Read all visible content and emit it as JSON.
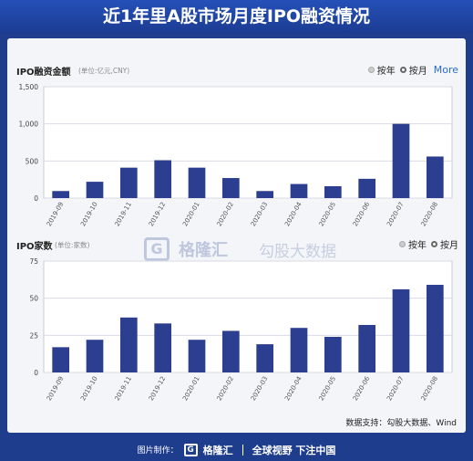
{
  "header": {
    "title": "近1年里A股市场月度IPO融资情况"
  },
  "panel1": {
    "title": "IPO融资金额",
    "unit": "(单位:亿元,CNY)",
    "toggle_year": "按年",
    "toggle_month": "按月",
    "more": "More"
  },
  "panel2": {
    "title": "IPO家数",
    "unit": "(单位:家数)",
    "toggle_year": "按年",
    "toggle_month": "按月"
  },
  "watermark": {
    "box": "G",
    "text": "格隆汇",
    "text2": "勾股大数据"
  },
  "source": "数据支持：勾股大数据、Wind",
  "footer": {
    "made_by": "图片制作：",
    "brand_box": "G",
    "brand": "格隆汇",
    "slogan": "全球视野 下注中国"
  },
  "colors": {
    "bar": "#2b3e8f",
    "header_bg": "#1e3d8c",
    "grid": "#d8dbe3",
    "more": "#2a6cd4"
  },
  "chart_data": [
    {
      "type": "bar",
      "title": "IPO融资金额",
      "categories": [
        "2019-09",
        "2019-10",
        "2019-11",
        "2019-12",
        "2020-01",
        "2020-02",
        "2020-03",
        "2020-04",
        "2020-05",
        "2020-06",
        "2020-07",
        "2020-08"
      ],
      "values": [
        95,
        220,
        410,
        510,
        410,
        270,
        95,
        190,
        160,
        260,
        1000,
        560
      ],
      "ylim": [
        0,
        1500
      ],
      "yticks": [
        "0",
        "500",
        "1,000",
        "1,500"
      ],
      "ytick_values": [
        0,
        500,
        1000,
        1500
      ],
      "grid": true
    },
    {
      "type": "bar",
      "title": "IPO家数",
      "categories": [
        "2019-09",
        "2019-10",
        "2019-11",
        "2019-12",
        "2020-01",
        "2020-02",
        "2020-03",
        "2020-04",
        "2020-05",
        "2020-06",
        "2020-07",
        "2020-08"
      ],
      "values": [
        17,
        22,
        37,
        33,
        22,
        28,
        19,
        30,
        24,
        32,
        56,
        59
      ],
      "ylim": [
        0,
        75
      ],
      "yticks": [
        "0",
        "25",
        "50",
        "75"
      ],
      "ytick_values": [
        0,
        25,
        50,
        75
      ],
      "grid": true
    }
  ]
}
